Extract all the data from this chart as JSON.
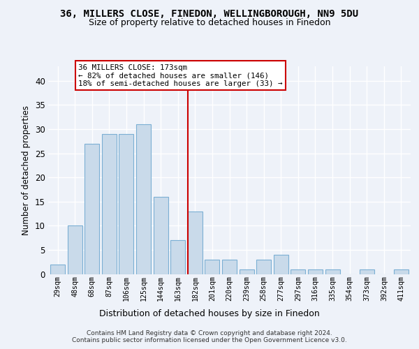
{
  "title1": "36, MILLERS CLOSE, FINEDON, WELLINGBOROUGH, NN9 5DU",
  "title2": "Size of property relative to detached houses in Finedon",
  "xlabel": "Distribution of detached houses by size in Finedon",
  "ylabel": "Number of detached properties",
  "categories": [
    "29sqm",
    "48sqm",
    "68sqm",
    "87sqm",
    "106sqm",
    "125sqm",
    "144sqm",
    "163sqm",
    "182sqm",
    "201sqm",
    "220sqm",
    "239sqm",
    "258sqm",
    "277sqm",
    "297sqm",
    "316sqm",
    "335sqm",
    "354sqm",
    "373sqm",
    "392sqm",
    "411sqm"
  ],
  "values": [
    2,
    10,
    27,
    29,
    29,
    31,
    16,
    7,
    13,
    3,
    3,
    1,
    3,
    4,
    1,
    1,
    1,
    0,
    1,
    0,
    1
  ],
  "bar_color": "#c9daea",
  "bar_edge_color": "#7bafd4",
  "reference_line_label": "36 MILLERS CLOSE: 173sqm",
  "annotation_line1": "← 82% of detached houses are smaller (146)",
  "annotation_line2": "18% of semi-detached houses are larger (33) →",
  "annotation_box_color": "#ffffff",
  "annotation_box_edge": "#cc0000",
  "vline_color": "#cc0000",
  "ylim": [
    0,
    43
  ],
  "yticks": [
    0,
    5,
    10,
    15,
    20,
    25,
    30,
    35,
    40
  ],
  "footer1": "Contains HM Land Registry data © Crown copyright and database right 2024.",
  "footer2": "Contains public sector information licensed under the Open Government Licence v3.0.",
  "bg_color": "#eef2f9",
  "grid_color": "#ffffff"
}
